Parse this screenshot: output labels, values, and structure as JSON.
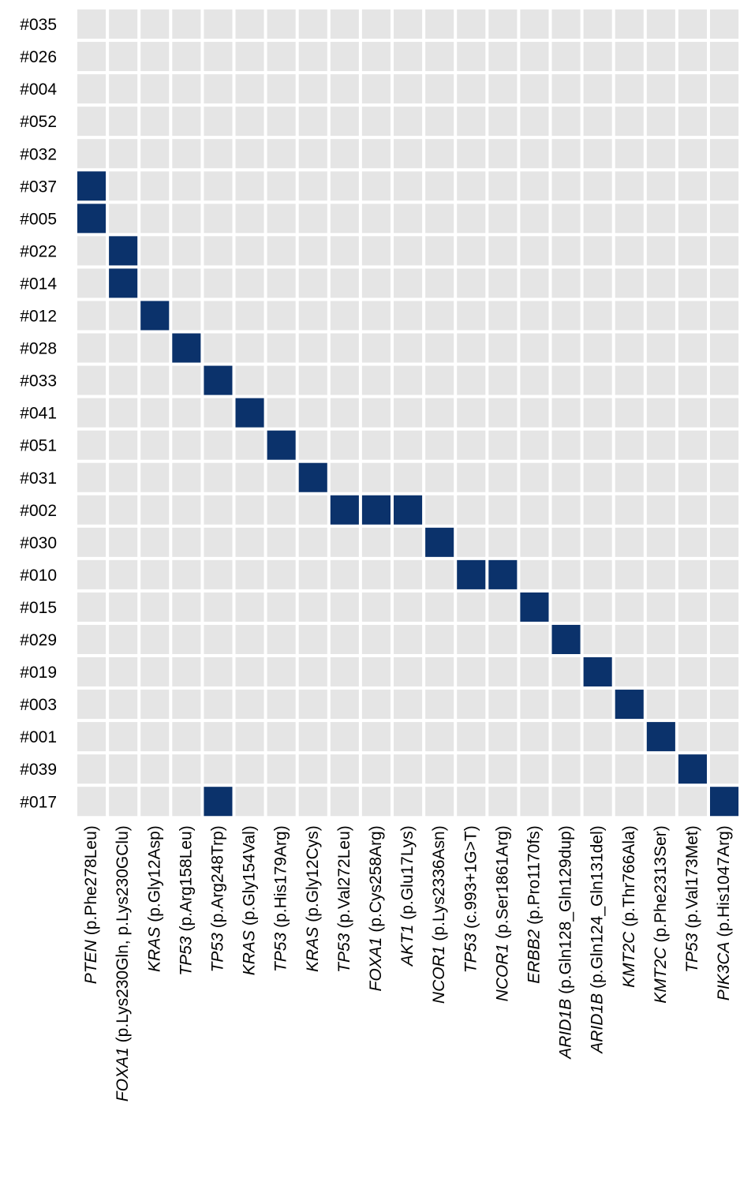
{
  "chart_data": {
    "type": "heatmap",
    "rows": [
      "#035",
      "#026",
      "#004",
      "#052",
      "#032",
      "#037",
      "#005",
      "#022",
      "#014",
      "#012",
      "#028",
      "#033",
      "#041",
      "#051",
      "#031",
      "#002",
      "#030",
      "#010",
      "#015",
      "#029",
      "#019",
      "#003",
      "#001",
      "#039",
      "#017"
    ],
    "columns": [
      {
        "gene": "PTEN",
        "variant": "(p.Phe278Leu)"
      },
      {
        "gene": "FOXA1",
        "variant": "(p.Lys230Gln, p.Lys230GClu)"
      },
      {
        "gene": "KRAS",
        "variant": "(p.Gly12Asp)"
      },
      {
        "gene": "TP53",
        "variant": "(p.Arg158Leu)"
      },
      {
        "gene": "TP53",
        "variant": "(p.Arg248Trp)"
      },
      {
        "gene": "KRAS",
        "variant": "(p.Gly154Val)"
      },
      {
        "gene": "TP53",
        "variant": "(p.His179Arg)"
      },
      {
        "gene": "KRAS",
        "variant": "(p.Gly12Cys)"
      },
      {
        "gene": "TP53",
        "variant": "(p.Val272Leu)"
      },
      {
        "gene": "FOXA1",
        "variant": "(p.Cys258Arg)"
      },
      {
        "gene": "AKT1",
        "variant": "(p.Glu17Lys)"
      },
      {
        "gene": "NCOR1",
        "variant": "(p.Lys2336Asn)"
      },
      {
        "gene": "TP53",
        "variant": "(c.993+1G>T)"
      },
      {
        "gene": "NCOR1",
        "variant": "(p.Ser1861Arg)"
      },
      {
        "gene": "ERBB2",
        "variant": "(p.Pro1170fs)"
      },
      {
        "gene": "ARID1B",
        "variant": "(p.Gln128_Gln129dup)"
      },
      {
        "gene": "ARID1B",
        "variant": "(p.Gln124_Gln131del)"
      },
      {
        "gene": "KMT2C",
        "variant": "(p.Thr766Ala)"
      },
      {
        "gene": "KMT2C",
        "variant": "(p.Phe2313Ser)"
      },
      {
        "gene": "TP53",
        "variant": "(p.Val173Met)"
      },
      {
        "gene": "PIK3CA",
        "variant": "(p.His1047Arg)"
      }
    ],
    "values": [
      [
        0,
        0,
        0,
        0,
        0,
        0,
        0,
        0,
        0,
        0,
        0,
        0,
        0,
        0,
        0,
        0,
        0,
        0,
        0,
        0,
        0
      ],
      [
        0,
        0,
        0,
        0,
        0,
        0,
        0,
        0,
        0,
        0,
        0,
        0,
        0,
        0,
        0,
        0,
        0,
        0,
        0,
        0,
        0
      ],
      [
        0,
        0,
        0,
        0,
        0,
        0,
        0,
        0,
        0,
        0,
        0,
        0,
        0,
        0,
        0,
        0,
        0,
        0,
        0,
        0,
        0
      ],
      [
        0,
        0,
        0,
        0,
        0,
        0,
        0,
        0,
        0,
        0,
        0,
        0,
        0,
        0,
        0,
        0,
        0,
        0,
        0,
        0,
        0
      ],
      [
        0,
        0,
        0,
        0,
        0,
        0,
        0,
        0,
        0,
        0,
        0,
        0,
        0,
        0,
        0,
        0,
        0,
        0,
        0,
        0,
        0
      ],
      [
        1,
        0,
        0,
        0,
        0,
        0,
        0,
        0,
        0,
        0,
        0,
        0,
        0,
        0,
        0,
        0,
        0,
        0,
        0,
        0,
        0
      ],
      [
        1,
        0,
        0,
        0,
        0,
        0,
        0,
        0,
        0,
        0,
        0,
        0,
        0,
        0,
        0,
        0,
        0,
        0,
        0,
        0,
        0
      ],
      [
        0,
        1,
        0,
        0,
        0,
        0,
        0,
        0,
        0,
        0,
        0,
        0,
        0,
        0,
        0,
        0,
        0,
        0,
        0,
        0,
        0
      ],
      [
        0,
        1,
        0,
        0,
        0,
        0,
        0,
        0,
        0,
        0,
        0,
        0,
        0,
        0,
        0,
        0,
        0,
        0,
        0,
        0,
        0
      ],
      [
        0,
        0,
        1,
        0,
        0,
        0,
        0,
        0,
        0,
        0,
        0,
        0,
        0,
        0,
        0,
        0,
        0,
        0,
        0,
        0,
        0
      ],
      [
        0,
        0,
        0,
        1,
        0,
        0,
        0,
        0,
        0,
        0,
        0,
        0,
        0,
        0,
        0,
        0,
        0,
        0,
        0,
        0,
        0
      ],
      [
        0,
        0,
        0,
        0,
        1,
        0,
        0,
        0,
        0,
        0,
        0,
        0,
        0,
        0,
        0,
        0,
        0,
        0,
        0,
        0,
        0
      ],
      [
        0,
        0,
        0,
        0,
        0,
        1,
        0,
        0,
        0,
        0,
        0,
        0,
        0,
        0,
        0,
        0,
        0,
        0,
        0,
        0,
        0
      ],
      [
        0,
        0,
        0,
        0,
        0,
        0,
        1,
        0,
        0,
        0,
        0,
        0,
        0,
        0,
        0,
        0,
        0,
        0,
        0,
        0,
        0
      ],
      [
        0,
        0,
        0,
        0,
        0,
        0,
        0,
        1,
        0,
        0,
        0,
        0,
        0,
        0,
        0,
        0,
        0,
        0,
        0,
        0,
        0
      ],
      [
        0,
        0,
        0,
        0,
        0,
        0,
        0,
        0,
        1,
        1,
        1,
        0,
        0,
        0,
        0,
        0,
        0,
        0,
        0,
        0,
        0
      ],
      [
        0,
        0,
        0,
        0,
        0,
        0,
        0,
        0,
        0,
        0,
        0,
        1,
        0,
        0,
        0,
        0,
        0,
        0,
        0,
        0,
        0
      ],
      [
        0,
        0,
        0,
        0,
        0,
        0,
        0,
        0,
        0,
        0,
        0,
        0,
        1,
        1,
        0,
        0,
        0,
        0,
        0,
        0,
        0
      ],
      [
        0,
        0,
        0,
        0,
        0,
        0,
        0,
        0,
        0,
        0,
        0,
        0,
        0,
        0,
        1,
        0,
        0,
        0,
        0,
        0,
        0
      ],
      [
        0,
        0,
        0,
        0,
        0,
        0,
        0,
        0,
        0,
        0,
        0,
        0,
        0,
        0,
        0,
        1,
        0,
        0,
        0,
        0,
        0
      ],
      [
        0,
        0,
        0,
        0,
        0,
        0,
        0,
        0,
        0,
        0,
        0,
        0,
        0,
        0,
        0,
        0,
        1,
        0,
        0,
        0,
        0
      ],
      [
        0,
        0,
        0,
        0,
        0,
        0,
        0,
        0,
        0,
        0,
        0,
        0,
        0,
        0,
        0,
        0,
        0,
        1,
        0,
        0,
        0
      ],
      [
        0,
        0,
        0,
        0,
        0,
        0,
        0,
        0,
        0,
        0,
        0,
        0,
        0,
        0,
        0,
        0,
        0,
        0,
        1,
        0,
        0
      ],
      [
        0,
        0,
        0,
        0,
        0,
        0,
        0,
        0,
        0,
        0,
        0,
        0,
        0,
        0,
        0,
        0,
        0,
        0,
        0,
        1,
        0
      ],
      [
        0,
        0,
        0,
        0,
        1,
        0,
        0,
        0,
        0,
        0,
        0,
        0,
        0,
        0,
        0,
        0,
        0,
        0,
        0,
        0,
        1
      ]
    ],
    "colors": {
      "absent": "#e5e5e5",
      "present": "#0b326b"
    }
  }
}
